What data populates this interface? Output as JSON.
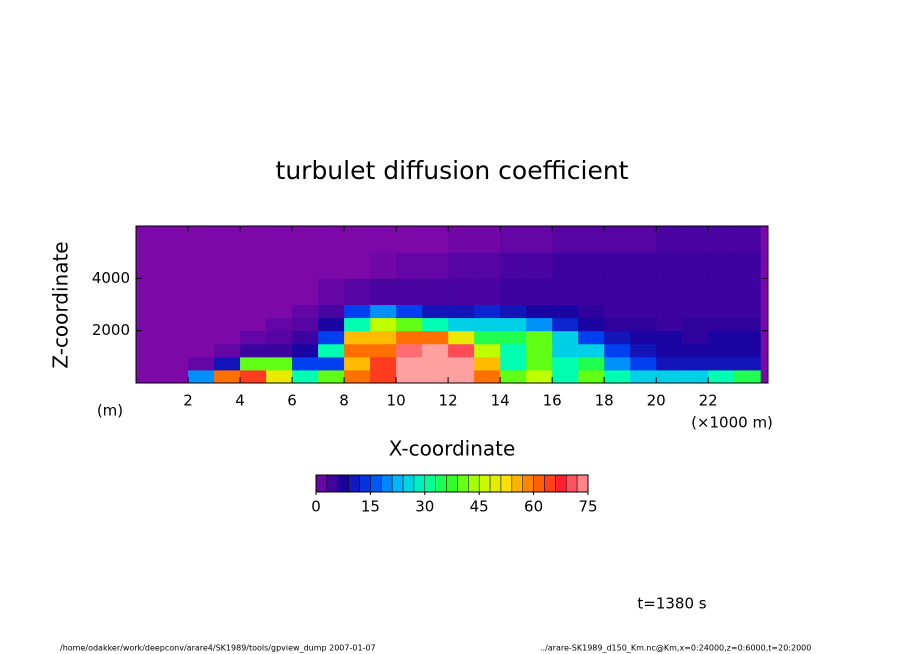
{
  "chart_data": {
    "type": "heatmap",
    "title": "turbulet diffusion coefficient",
    "x_label": "X-coordinate",
    "x_unit": "(×1000 m)",
    "y_label": "Z-coordinate",
    "y_unit": "(m)",
    "xlim": [
      0,
      24.3
    ],
    "xticks": [
      2,
      4,
      6,
      8,
      10,
      12,
      14,
      16,
      18,
      20,
      22
    ],
    "ylim": [
      0,
      6000
    ],
    "yticks": [
      2000,
      4000
    ],
    "x_edges": [
      0,
      1,
      2,
      3,
      4,
      5,
      6,
      7,
      8,
      9,
      10,
      11,
      12,
      13,
      14,
      15,
      16,
      17,
      18,
      19,
      20,
      21,
      22,
      23,
      24
    ],
    "z_edges": [
      0,
      500,
      1000,
      1500,
      2000,
      2500,
      3000,
      4000,
      5000,
      6000
    ],
    "values": [
      [
        0,
        0,
        20,
        60,
        65,
        50,
        30,
        40,
        60,
        65,
        75,
        75,
        75,
        60,
        40,
        45,
        30,
        40,
        30,
        25,
        25,
        25,
        30,
        35
      ],
      [
        0,
        0,
        2,
        10,
        40,
        40,
        15,
        15,
        55,
        65,
        75,
        75,
        75,
        55,
        30,
        40,
        30,
        35,
        20,
        15,
        10,
        10,
        10,
        10
      ],
      [
        0,
        0,
        0,
        2,
        5,
        5,
        8,
        30,
        60,
        60,
        72,
        75,
        70,
        45,
        30,
        40,
        25,
        25,
        15,
        10,
        8,
        8,
        8,
        8
      ],
      [
        0,
        0,
        0,
        0,
        2,
        3,
        5,
        15,
        55,
        55,
        60,
        60,
        50,
        35,
        35,
        40,
        25,
        15,
        10,
        8,
        8,
        6,
        8,
        8
      ],
      [
        0,
        0,
        0,
        0,
        0,
        2,
        3,
        8,
        30,
        45,
        40,
        30,
        25,
        25,
        25,
        20,
        12,
        8,
        6,
        6,
        5,
        6,
        6,
        6
      ],
      [
        0,
        0,
        0,
        0,
        0,
        0,
        2,
        4,
        15,
        20,
        15,
        10,
        10,
        12,
        10,
        8,
        8,
        6,
        5,
        5,
        5,
        5,
        5,
        5
      ],
      [
        0,
        0,
        0,
        0,
        0,
        0,
        0,
        2,
        3,
        4,
        4,
        4,
        4,
        4,
        5,
        5,
        5,
        5,
        5,
        5,
        5,
        5,
        5,
        5
      ],
      [
        0,
        0,
        0,
        0,
        0,
        0,
        0,
        0,
        0,
        1,
        2,
        2,
        3,
        3,
        4,
        4,
        5,
        5,
        5,
        5,
        5,
        5,
        5,
        5
      ],
      [
        0,
        0,
        0,
        0,
        0,
        0,
        0,
        0,
        0,
        0,
        0,
        0,
        1,
        1,
        2,
        2,
        3,
        3,
        3,
        3,
        4,
        4,
        4,
        4
      ]
    ],
    "colormap": [
      "#7d08a8",
      "#1c009c",
      "#0040f0",
      "#00b8ff",
      "#00ffb0",
      "#30ff20",
      "#c0ff00",
      "#ffe000",
      "#ff7000",
      "#ff2030",
      "#ffa0a0"
    ],
    "colorbar": {
      "lim": [
        0,
        75
      ],
      "ticks": [
        0,
        15,
        30,
        45,
        60,
        75
      ]
    },
    "annotation": "t=1380 s",
    "footer_left": "/home/odakker/work/deepconv/arare4/SK1989/tools/gpview_dump  2007-01-07",
    "footer_right": "../arare-SK1989_d150_Km.nc@Km,x=0:24000,z=0:6000,t=20:2000"
  }
}
